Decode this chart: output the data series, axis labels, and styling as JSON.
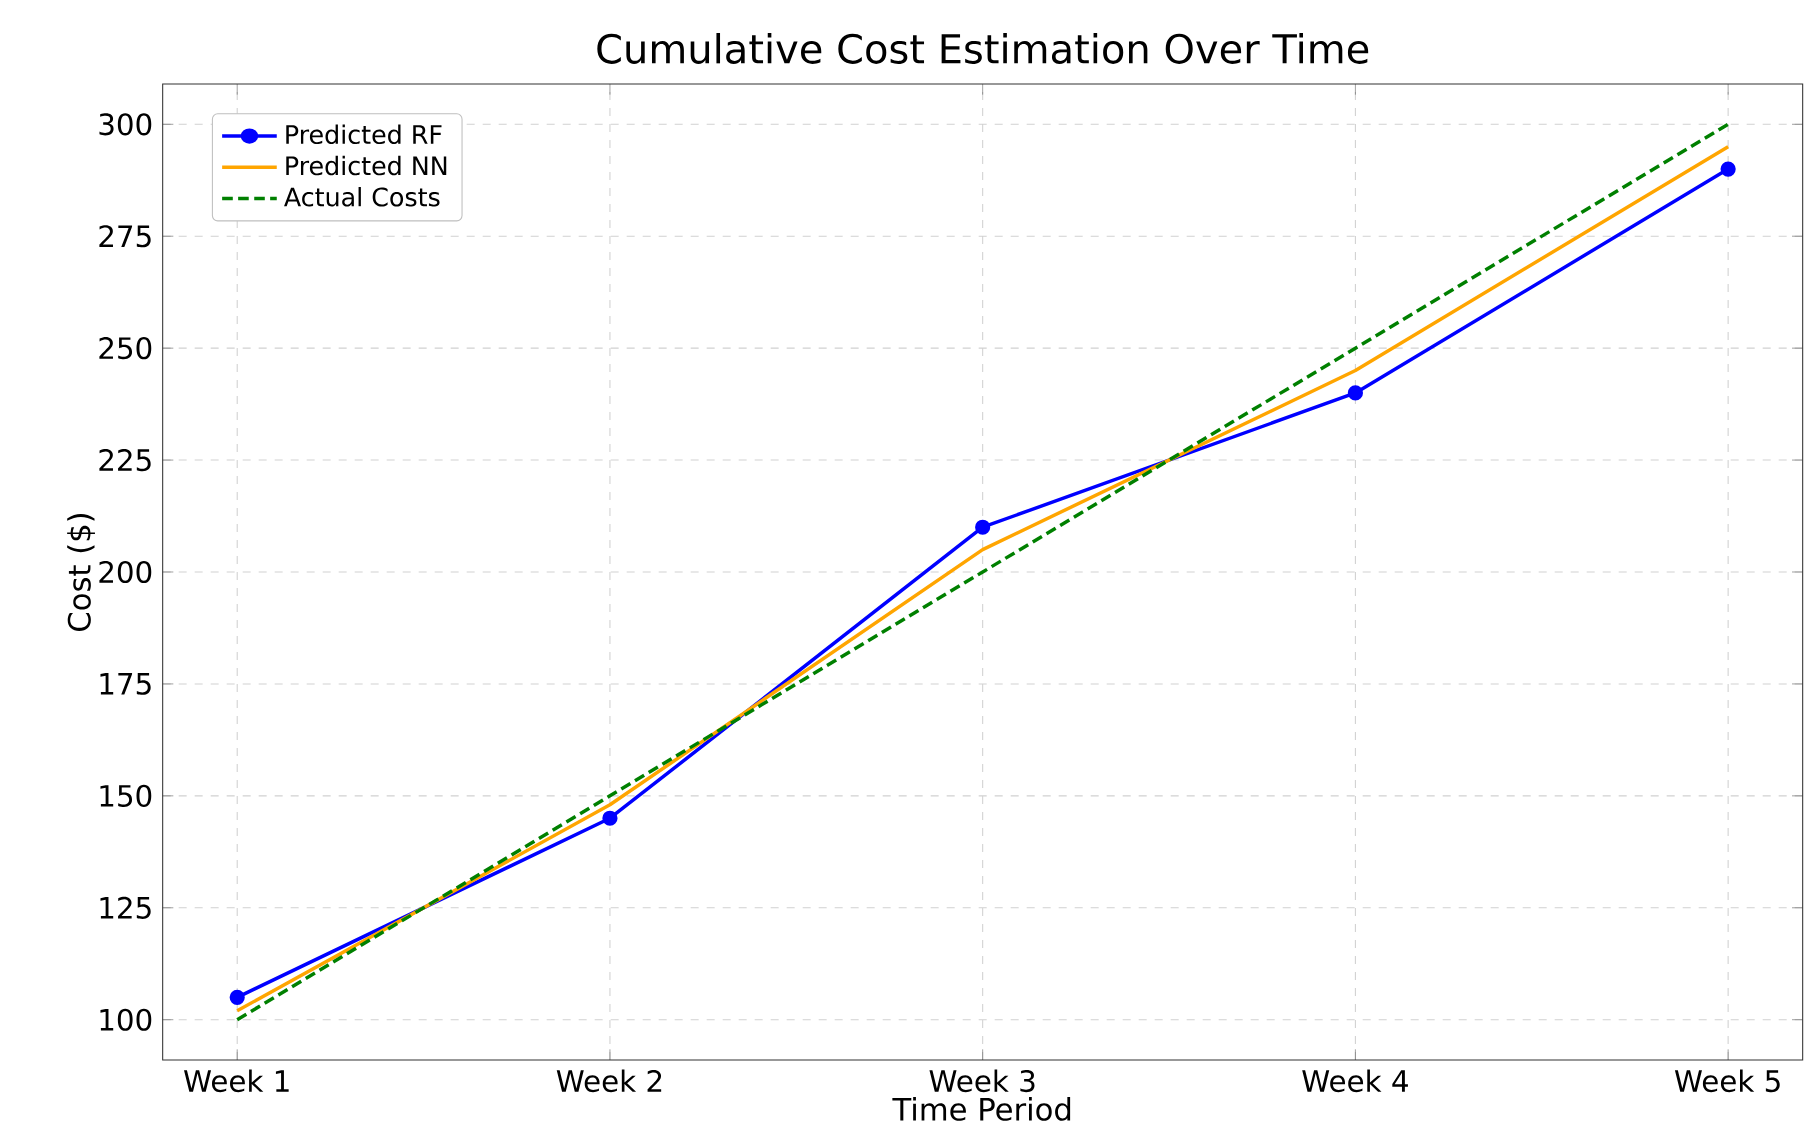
{
  "chart_data": {
    "type": "line",
    "title": "Cumulative Cost Estimation Over Time",
    "xlabel": "Time Period",
    "ylabel": "Cost ($)",
    "categories": [
      "Week 1",
      "Week 2",
      "Week 3",
      "Week 4",
      "Week 5"
    ],
    "series": [
      {
        "name": "Predicted RF",
        "color": "#0000ff",
        "values": [
          105,
          145,
          210,
          240,
          290
        ],
        "marker": "circle",
        "line_style": "solid"
      },
      {
        "name": "Predicted NN",
        "color": "#ffa500",
        "values": [
          102,
          148,
          205,
          245,
          295
        ],
        "marker": "none",
        "line_style": "solid"
      },
      {
        "name": "Actual Costs",
        "color": "#008000",
        "values": [
          100,
          150,
          200,
          250,
          300
        ],
        "marker": "none",
        "line_style": "dashed"
      }
    ],
    "ylim": [
      91,
      309
    ],
    "yticks": [
      100,
      125,
      150,
      175,
      200,
      225,
      250,
      275,
      300
    ],
    "grid": true,
    "legend": "top left"
  }
}
